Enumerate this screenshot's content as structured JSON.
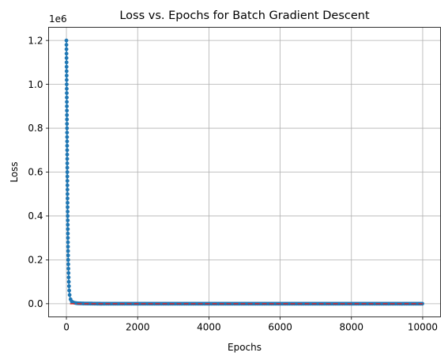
{
  "chart_data": {
    "type": "line",
    "title": "Loss vs. Epochs for Batch Gradient Descent",
    "xlabel": "Epochs",
    "ylabel": "Loss",
    "y_offset_label": "1e6",
    "xlim": [
      -500,
      10500
    ],
    "ylim": [
      -0.06,
      1.26
    ],
    "x_ticks": [
      0,
      2000,
      4000,
      6000,
      8000,
      10000
    ],
    "x_tick_labels": [
      "0",
      "2000",
      "4000",
      "6000",
      "8000",
      "10000"
    ],
    "y_ticks": [
      0.0,
      0.2,
      0.4,
      0.6,
      0.8,
      1.0,
      1.2
    ],
    "y_tick_labels": [
      "0.0",
      "0.2",
      "0.4",
      "0.6",
      "0.8",
      "1.0",
      "1.2"
    ],
    "grid": true,
    "series": [
      {
        "color": "#1f77b4",
        "marker": "circle",
        "x": [
          0,
          5,
          10,
          15,
          20,
          25,
          30,
          35,
          40,
          45,
          50,
          55,
          60,
          65,
          70,
          75,
          80,
          90,
          100,
          120,
          150,
          200,
          300,
          500,
          1000,
          2000,
          3000,
          4000,
          5000,
          6000,
          7000,
          8000,
          9000,
          10000
        ],
        "y": [
          1.2,
          1.08,
          0.96,
          0.84,
          0.72,
          0.6,
          0.5,
          0.41,
          0.33,
          0.26,
          0.2,
          0.17,
          0.14,
          0.11,
          0.09,
          0.07,
          0.055,
          0.04,
          0.03,
          0.018,
          0.01,
          0.005,
          0.002,
          0.001,
          0.0,
          0.0,
          0.0,
          0.0,
          0.0,
          0.0,
          0.0,
          0.0,
          0.0,
          0.0
        ]
      },
      {
        "color": "#d62728",
        "style": "dashed",
        "x": [
          100,
          10000
        ],
        "y": [
          0.0,
          0.0
        ]
      }
    ]
  }
}
